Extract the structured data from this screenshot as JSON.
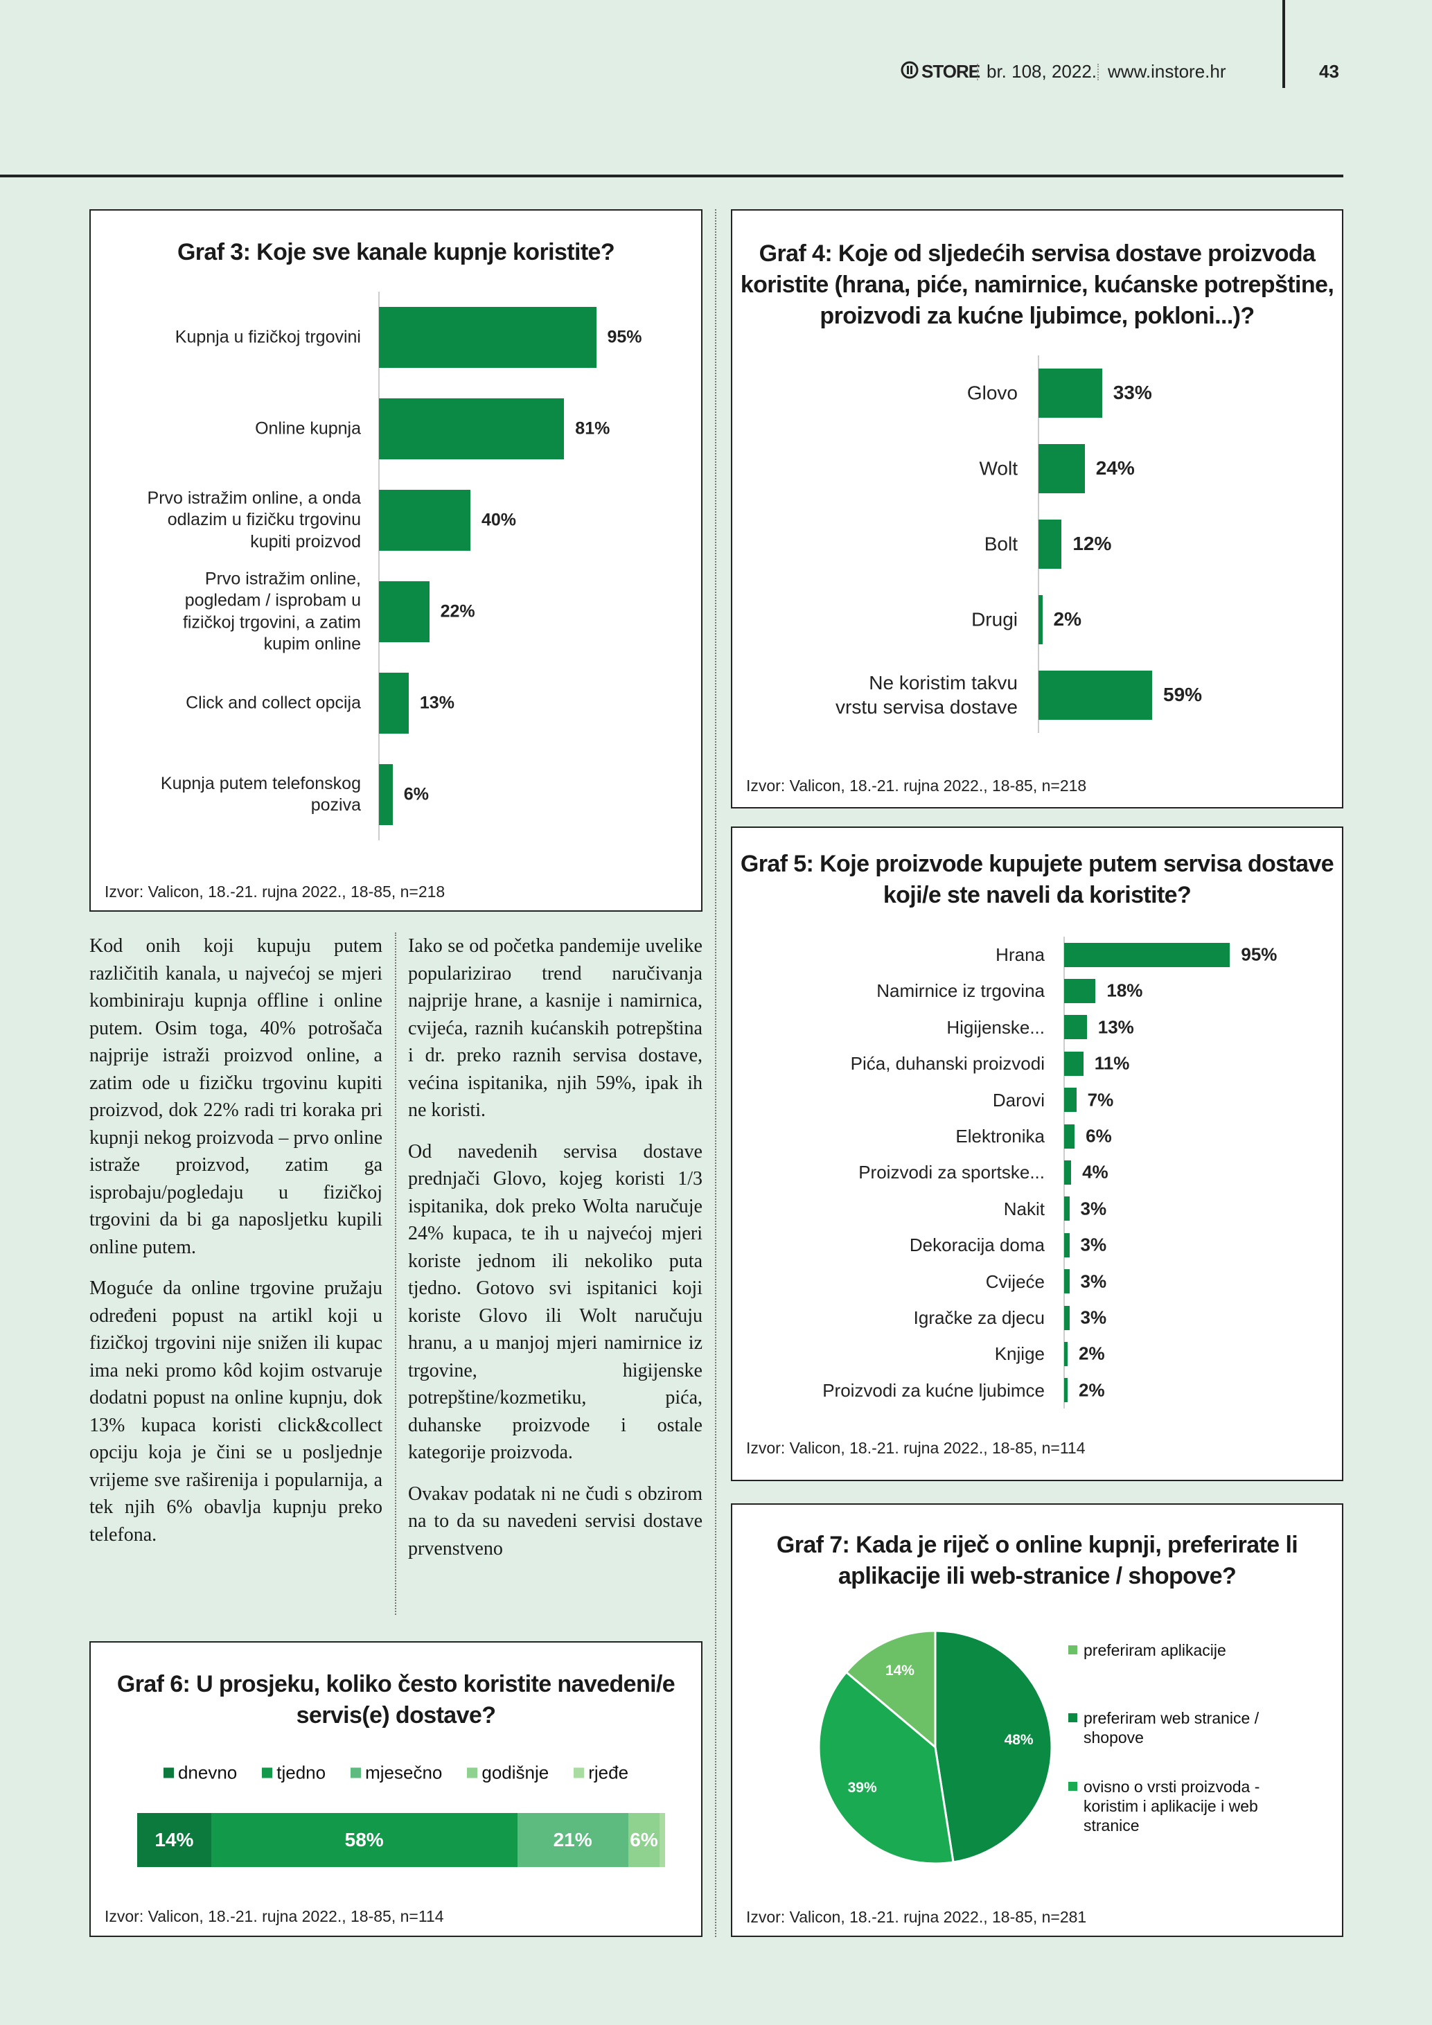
{
  "header": {
    "logo": "STORE",
    "issue": "br. 108, 2022.",
    "website": "www.instore.hr",
    "page": "43"
  },
  "chart_data": [
    {
      "type": "bar",
      "title": "Graf 3: Koje sve kanale kupnje koristite?",
      "categories": [
        "Kupnja u fizičkoj trgovini",
        "Online kupnja",
        "Prvo istražim online, a onda odlazim u fizičku trgovinu kupiti proizvod",
        "Prvo istražim online, pogledam / isprobam u fizičkoj trgovini, a zatim kupim online",
        "Click and collect opcija",
        "Kupnja putem telefonskog poziva"
      ],
      "values": [
        95,
        81,
        40,
        22,
        13,
        6
      ],
      "value_labels": [
        "95%",
        "81%",
        "40%",
        "22%",
        "13%",
        "6%"
      ],
      "xlim": [
        0,
        100
      ],
      "color": "#0a8a45",
      "source": "Izvor: Valicon, 18.-21. rujna 2022., 18-85, n=218"
    },
    {
      "type": "bar",
      "title": "Graf 4: Koje od sljedećih servisa dostave proizvoda koristite (hrana, piće, namirnice, kućanske potrepštine, proizvodi za kućne ljubimce, pokloni...)?",
      "categories": [
        "Glovo",
        "Wolt",
        "Bolt",
        "Drugi",
        "Ne koristim takvu vrstu servisa dostave"
      ],
      "values": [
        33,
        24,
        12,
        2,
        59
      ],
      "value_labels": [
        "33%",
        "24%",
        "12%",
        "2%",
        "59%"
      ],
      "xlim": [
        0,
        100
      ],
      "color": "#0a8a45",
      "source": "Izvor: Valicon, 18.-21. rujna 2022., 18-85, n=218"
    },
    {
      "type": "bar",
      "title": "Graf 5: Koje proizvode kupujete putem servisa dostave koji/e ste naveli da koristite?",
      "categories": [
        "Hrana",
        "Namirnice iz trgovina",
        "Higijenske...",
        "Pića, duhanski proizvodi",
        "Darovi",
        "Elektronika",
        "Proizvodi za sportske...",
        "Nakit",
        "Dekoracija doma",
        "Cvijeće",
        "Igračke za djecu",
        "Knjige",
        "Proizvodi za kućne ljubimce"
      ],
      "values": [
        95,
        18,
        13,
        11,
        7,
        6,
        4,
        3,
        3,
        3,
        3,
        2,
        2
      ],
      "value_labels": [
        "95%",
        "18%",
        "13%",
        "11%",
        "7%",
        "6%",
        "4%",
        "3%",
        "3%",
        "3%",
        "3%",
        "2%",
        "2%"
      ],
      "xlim": [
        0,
        100
      ],
      "color": "#0a8a45",
      "source": "Izvor: Valicon, 18.-21. rujna 2022., 18-85, n=114"
    },
    {
      "type": "stacked_bar",
      "title": "Graf 6: U prosjeku, koliko često koristite navedeni/e servis(e) dostave?",
      "xlim": [
        0,
        100
      ],
      "series": [
        {
          "name": "dnevno",
          "color": "#0b7a3c",
          "values": [
            14
          ],
          "value_labels": [
            "14%"
          ]
        },
        {
          "name": "tjedno",
          "color": "#12994a",
          "values": [
            58
          ],
          "value_labels": [
            "58%"
          ]
        },
        {
          "name": "mjesečno",
          "color": "#5dbb7f",
          "values": [
            21
          ],
          "value_labels": [
            "21%"
          ]
        },
        {
          "name": "godišnje",
          "color": "#8fd28f",
          "values": [
            6
          ],
          "value_labels": [
            "6%"
          ]
        },
        {
          "name": "rjeđe",
          "color": "#a8dca0",
          "values": [
            1
          ]
        }
      ],
      "source": "Izvor: Valicon, 18.-21. rujna 2022., 18-85, n=114"
    },
    {
      "type": "pie",
      "title": "Graf 7: Kada je riječ o online kupnji, preferirate li aplikacije ili web-stranice / shopove?",
      "categories": [
        "preferiram aplikacije",
        "preferiram web stranice / shopove",
        "ovisno o vrsti proizvoda - koristim i aplikacije i web stranice"
      ],
      "values": [
        14,
        48,
        39
      ],
      "value_labels": [
        "14%",
        "48%",
        "39%"
      ],
      "colors": [
        "#6cc166",
        "#0a8a43",
        "#1aab52"
      ],
      "source": "Izvor: Valicon, 18.-21. rujna 2022., 18-85, n=281"
    }
  ],
  "article": {
    "column_1": [
      "Kod onih koji kupuju putem različitih kanala, u najvećoj se mjeri kombiniraju kupnja offline i online putem. Osim toga, 40% potrošača najprije istraži proizvod online, a zatim ode u fizičku trgovinu kupiti proizvod, dok 22% radi tri koraka pri kupnji nekog proizvoda – prvo online istraže proizvod, zatim ga isprobaju/pogledaju u fizičkoj trgovini da bi ga naposljetku kupili online putem.",
      "Moguće da online trgovine pružaju određeni popust na artikl koji u fizičkoj trgovini nije snižen ili kupac ima neki promo kôd kojim ostvaruje dodatni popust na online kupnju, dok 13% kupaca koristi click&collect opciju koja je čini se u posljednje vrijeme sve raširenija i popularnija, a tek njih 6% obavlja kupnju preko telefona."
    ],
    "column_2": [
      "Iako se od početka pandemije uvelike popularizirao trend naručivanja najprije hrane, a kasnije i namirnica, cvijeća, raznih kućanskih potrepština i dr. preko raznih servisa dostave, većina ispitanika, njih 59%, ipak ih ne koristi.",
      "Od navedenih servisa dostave prednjači Glovo, kojeg koristi 1/3 ispitanika, dok preko Wolta naručuje 24% kupaca, te ih u najvećoj mjeri koriste jednom ili nekoliko puta tjedno. Gotovo svi ispitanici koji koriste Glovo ili Wolt naručuju hranu, a u manjoj mjeri namirnice iz trgovine, higijenske potrepštine/kozmetiku, pića, duhanske proizvode i ostale kategorije proizvoda.",
      "Ovakav podatak ni ne čudi s obzirom na to da su navedeni servisi dostave prvenstveno"
    ]
  }
}
